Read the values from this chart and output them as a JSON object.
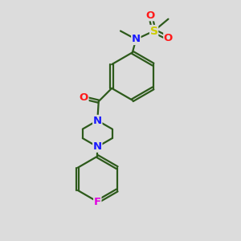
{
  "bg_color": "#dcdcdc",
  "bond_color": "#2d5a1b",
  "N_color": "#1a1aff",
  "O_color": "#ff1a1a",
  "S_color": "#cccc00",
  "F_color": "#e000e0",
  "line_width": 1.6,
  "dbo": 0.055,
  "figsize": [
    3.0,
    3.0
  ],
  "dpi": 100,
  "xlim": [
    0,
    10
  ],
  "ylim": [
    0,
    10
  ]
}
